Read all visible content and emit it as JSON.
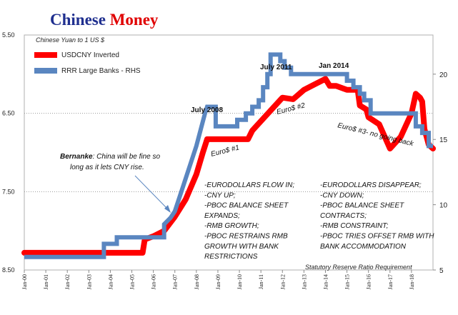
{
  "title_part1": "Chinese ",
  "title_part2": "Money",
  "subtitle": "Chinese Yuan to 1 US $",
  "footnote": "Statutory Reserve Ratio Requirement",
  "colors": {
    "title_blue": "#1f2f8f",
    "title_red": "#e00000",
    "usdcny": "#ff0000",
    "rrr": "#5a86c0"
  },
  "chart_data": {
    "type": "line",
    "legend": [
      "USDCNY Inverted",
      "RRR Large Banks - RHS"
    ],
    "legend_position": "top-left",
    "x_ticks": [
      "Jan-00",
      "Jan-01",
      "Jan-02",
      "Jan-03",
      "Jan-04",
      "Jan-05",
      "Jan-06",
      "Jan-07",
      "Jan-08",
      "Jan-09",
      "Jan-10",
      "Jan-11",
      "Jan-12",
      "Jan-13",
      "Jan-14",
      "Jan-15",
      "Jan-16",
      "Jan-17",
      "Jan-18"
    ],
    "xlim": [
      2000.0,
      2019.0
    ],
    "left_axis": {
      "inverted": true,
      "ylim": [
        5.5,
        8.5
      ],
      "ticks": [
        "5.50",
        "6.50",
        "7.50",
        "8.50"
      ],
      "tick_values": [
        5.5,
        6.5,
        7.5,
        8.5
      ]
    },
    "right_axis": {
      "ylim": [
        5,
        23
      ],
      "ticks": [
        "5",
        "10",
        "15",
        "20"
      ],
      "tick_values": [
        5,
        10,
        15,
        20
      ]
    },
    "grid": "horizontal-dotted",
    "series": [
      {
        "name": "USDCNY Inverted",
        "axis": "left",
        "x": [
          2000.0,
          2005.5,
          2005.6,
          2006.0,
          2006.5,
          2007.0,
          2007.5,
          2008.0,
          2008.3,
          2008.5,
          2009.0,
          2010.0,
          2010.4,
          2010.6,
          2011.0,
          2011.5,
          2012.0,
          2012.5,
          2013.0,
          2013.5,
          2014.0,
          2014.2,
          2014.5,
          2015.0,
          2015.5,
          2015.6,
          2015.9,
          2016.0,
          2016.5,
          2017.0,
          2017.5,
          2018.0,
          2018.2,
          2018.4,
          2018.5,
          2018.6,
          2018.8,
          2019.0
        ],
        "y": [
          8.28,
          8.28,
          8.11,
          8.07,
          8.0,
          7.82,
          7.6,
          7.28,
          7.0,
          6.83,
          6.83,
          6.83,
          6.83,
          6.72,
          6.6,
          6.45,
          6.3,
          6.32,
          6.2,
          6.13,
          6.06,
          6.15,
          6.15,
          6.2,
          6.2,
          6.4,
          6.45,
          6.55,
          6.64,
          6.95,
          6.8,
          6.5,
          6.25,
          6.3,
          6.35,
          6.7,
          6.9,
          6.95
        ]
      },
      {
        "name": "RRR Large Banks - RHS",
        "axis": "right",
        "x": [
          2000.0,
          2003.7,
          2003.7,
          2004.3,
          2004.3,
          2006.5,
          2006.5,
          2006.8,
          2007.0,
          2007.5,
          2008.0,
          2008.4,
          2008.5,
          2008.9,
          2008.9,
          2009.9,
          2009.9,
          2010.3,
          2010.3,
          2010.6,
          2010.6,
          2010.9,
          2010.9,
          2011.1,
          2011.1,
          2011.3,
          2011.3,
          2011.45,
          2011.45,
          2011.9,
          2011.9,
          2012.1,
          2012.1,
          2012.4,
          2012.4,
          2015.0,
          2015.0,
          2015.3,
          2015.3,
          2015.6,
          2015.6,
          2015.8,
          2015.8,
          2016.1,
          2016.1,
          2016.9,
          2016.9,
          2018.2,
          2018.2,
          2018.3,
          2018.3,
          2018.5,
          2018.5,
          2018.8,
          2018.8,
          2019.0
        ],
        "y": [
          6.0,
          6.0,
          7.0,
          7.0,
          7.5,
          7.5,
          8.5,
          9.0,
          9.5,
          12.0,
          14.5,
          17.0,
          17.5,
          17.5,
          16.0,
          16.0,
          16.5,
          16.5,
          17.0,
          17.0,
          17.5,
          17.5,
          18.0,
          18.0,
          19.0,
          19.0,
          20.0,
          20.0,
          21.5,
          21.5,
          21.0,
          21.0,
          20.5,
          20.5,
          20.0,
          20.0,
          19.5,
          19.5,
          19.0,
          19.0,
          18.5,
          18.5,
          18.0,
          18.0,
          17.0,
          17.0,
          17.0,
          17.0,
          16.0,
          16.0,
          16.0,
          16.0,
          15.5,
          15.5,
          14.5,
          14.5
        ]
      }
    ],
    "annotations": {
      "july2008": "July 2008",
      "july2011": "July 2011",
      "jan2014": "Jan 2014",
      "euro1": "Euro$ #1",
      "euro2": "Euro$ #2",
      "euro3": "Euro$ #3- no going back",
      "bernanke_bold": "Bernanke",
      "bernanke_line1": ": China will be fine so",
      "bernanke_line2": "long as it lets CNY rise.",
      "left_block": [
        "-EURODOLLARS FLOW IN;",
        "-CNY UP;",
        "-PBOC BALANCE SHEET",
        "EXPANDS;",
        "-RMB GROWTH;",
        "-PBOC RESTRAINS RMB",
        "GROWTH WITH BANK",
        "RESTRICTIONS"
      ],
      "right_block": [
        "-EURODOLLARS DISAPPEAR;",
        "-CNY DOWN;",
        "-PBOC BALANCE SHEET",
        "CONTRACTS;",
        "-RMB CONSTRAINT;",
        "-PBOC TRIES OFFSET RMB WITH",
        "BANK ACCOMMODATION"
      ]
    }
  }
}
